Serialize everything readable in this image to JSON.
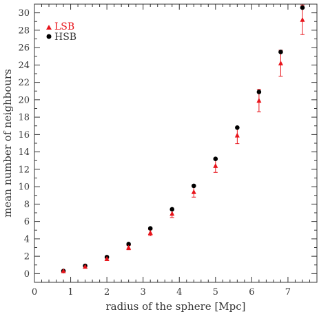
{
  "chart_data": {
    "type": "scatter",
    "title": "",
    "xlabel": "radius of the sphere [Mpc]",
    "ylabel": "mean number of neighbours",
    "xlim": [
      0,
      7.8
    ],
    "ylim": [
      -1,
      31
    ],
    "x_ticks_major": [
      0,
      1,
      2,
      3,
      4,
      5,
      6,
      7
    ],
    "y_ticks_major": [
      0,
      2,
      4,
      6,
      8,
      10,
      12,
      14,
      16,
      18,
      20,
      22,
      24,
      26,
      28,
      30
    ],
    "grid": false,
    "legend_position": "top-left",
    "series": [
      {
        "name": "LSB",
        "marker": "triangle",
        "color": "#e8141b",
        "x": [
          0.8,
          1.4,
          2.0,
          2.6,
          3.2,
          3.8,
          4.4,
          5.0,
          5.6,
          6.2,
          6.8,
          7.4
        ],
        "y": [
          0.3,
          0.8,
          1.7,
          3.0,
          4.7,
          6.9,
          9.4,
          12.4,
          15.9,
          19.9,
          24.2,
          29.2
        ],
        "err": [
          0.1,
          0.15,
          0.2,
          0.25,
          0.35,
          0.45,
          0.6,
          0.75,
          0.95,
          1.3,
          1.5,
          1.7
        ]
      },
      {
        "name": "HSB",
        "marker": "circle",
        "color": "#000000",
        "x": [
          0.8,
          1.4,
          2.0,
          2.6,
          3.2,
          3.8,
          4.4,
          5.0,
          5.6,
          6.2,
          6.8,
          7.4
        ],
        "y": [
          0.3,
          0.9,
          1.9,
          3.4,
          5.2,
          7.4,
          10.1,
          13.2,
          16.8,
          20.9,
          25.5,
          30.6
        ]
      }
    ]
  }
}
